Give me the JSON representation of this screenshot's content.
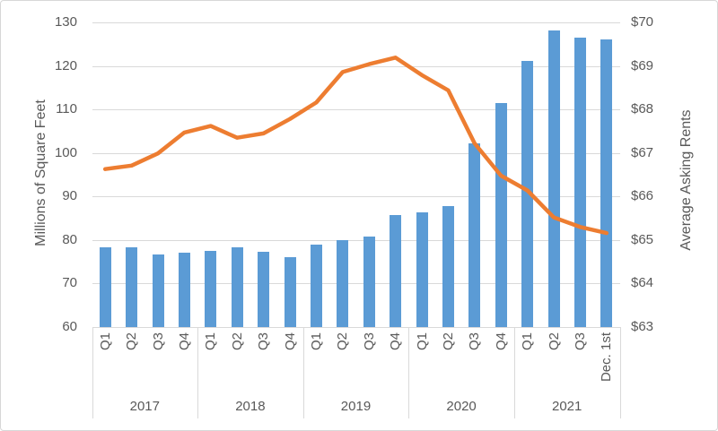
{
  "chart_data": {
    "type": "bar+line combo",
    "categories": [
      "Q1",
      "Q2",
      "Q3",
      "Q4",
      "Q1",
      "Q2",
      "Q3",
      "Q4",
      "Q1",
      "Q2",
      "Q3",
      "Q4",
      "Q1",
      "Q2",
      "Q3",
      "Q4",
      "Q1",
      "Q2",
      "Q3",
      "Dec. 1st"
    ],
    "year_groups": [
      {
        "label": "2017",
        "span": 4
      },
      {
        "label": "2018",
        "span": 4
      },
      {
        "label": "2019",
        "span": 4
      },
      {
        "label": "2020",
        "span": 4
      },
      {
        "label": "2021",
        "span": 4
      }
    ],
    "series": [
      {
        "name": "Millions of Square Feet",
        "type": "bar",
        "axis": "left",
        "color": "#5b9bd5",
        "values": [
          78.3,
          78.3,
          76.7,
          77.2,
          77.6,
          78.3,
          77.4,
          76.1,
          79.0,
          79.9,
          80.9,
          85.7,
          86.4,
          87.9,
          102.3,
          111.4,
          121.2,
          128.2,
          126.6,
          126.0
        ]
      },
      {
        "name": "Average Asking Rents",
        "type": "line",
        "axis": "right",
        "color": "#ed7d31",
        "values": [
          66.63,
          66.71,
          66.99,
          67.47,
          67.62,
          67.35,
          67.45,
          67.78,
          68.16,
          68.86,
          69.04,
          69.19,
          68.79,
          68.44,
          67.22,
          66.48,
          66.14,
          65.52,
          65.3,
          65.16
        ]
      }
    ],
    "left_axis": {
      "title": "Millions of Square Feet",
      "min": 60,
      "max": 130,
      "step": 10,
      "tick_labels": [
        "130",
        "120",
        "110",
        "100",
        "90",
        "80",
        "70",
        "60"
      ],
      "tick_values": [
        130,
        120,
        110,
        100,
        90,
        80,
        70,
        60
      ]
    },
    "right_axis": {
      "title": "Average Asking Rents",
      "min": 63,
      "max": 70,
      "step": 1,
      "tick_labels": [
        "$70",
        "$69",
        "$68",
        "$67",
        "$66",
        "$65",
        "$64",
        "$63"
      ],
      "tick_values": [
        70,
        69,
        68,
        67,
        66,
        65,
        64,
        63
      ]
    },
    "grid": true,
    "legend": "none",
    "colors": {
      "bar": "#5b9bd5",
      "line": "#ed7d31",
      "gridline": "#d9d9d9",
      "text": "#595959",
      "border": "#d7d7d7",
      "background": "#ffffff"
    }
  }
}
